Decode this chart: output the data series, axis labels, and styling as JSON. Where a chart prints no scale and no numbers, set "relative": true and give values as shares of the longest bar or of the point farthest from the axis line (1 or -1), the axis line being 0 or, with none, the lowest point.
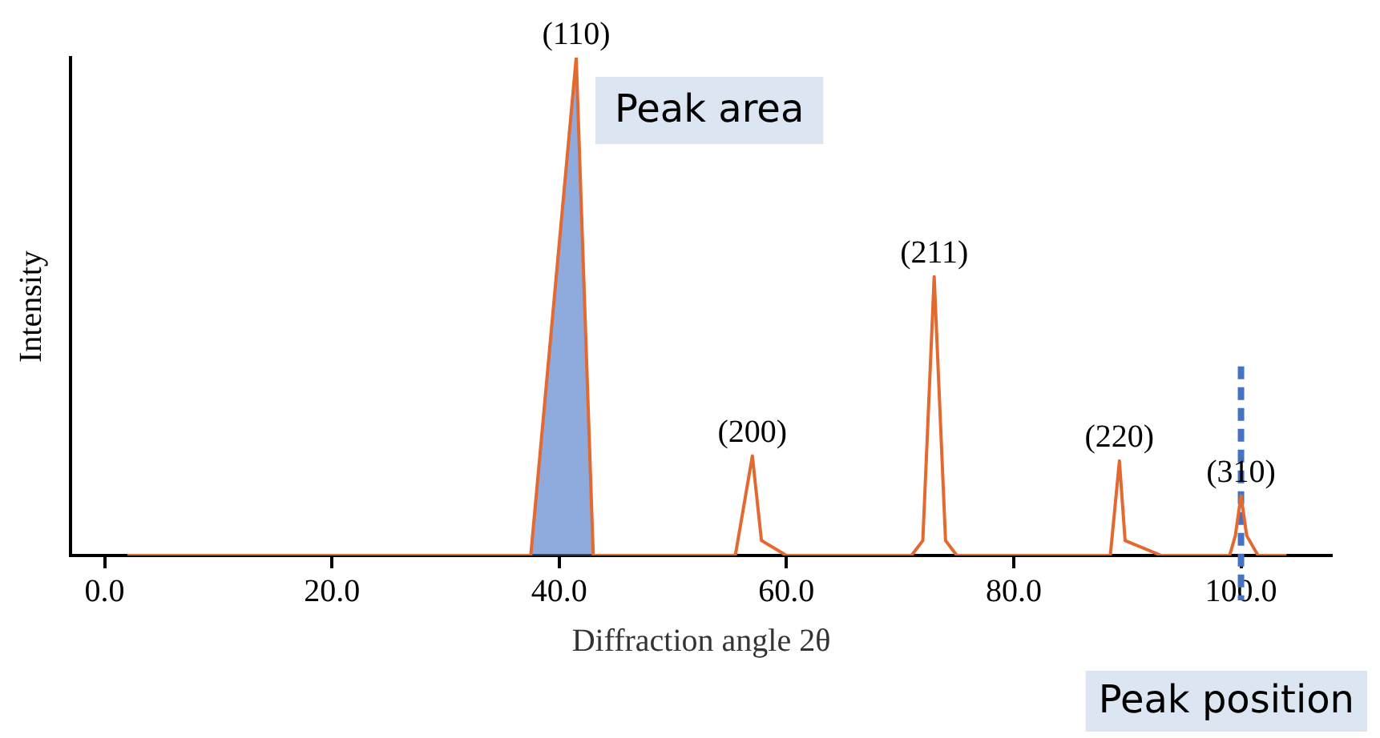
{
  "chart_data": {
    "type": "line",
    "relative": true,
    "xlabel": "Diffraction angle 2θ",
    "ylabel": "Intensity",
    "xlim": [
      -3,
      108
    ],
    "xticks": [
      {
        "value": 0,
        "label": "0.0"
      },
      {
        "value": 20,
        "label": "20.0"
      },
      {
        "value": 40,
        "label": "40.0"
      },
      {
        "value": 60,
        "label": "60.0"
      },
      {
        "value": 80,
        "label": "80.0"
      },
      {
        "value": 100,
        "label": "100.0"
      }
    ],
    "series": [
      {
        "color": "#e2692f",
        "x": [
          2,
          37.5,
          41.5,
          43,
          55.5,
          57,
          57.8,
          60,
          71,
          72,
          73,
          74,
          75,
          88.5,
          89.3,
          89.8,
          93,
          99,
          99.5,
          100,
          100.5,
          101.5,
          104
        ],
        "values": [
          0,
          0,
          1,
          0,
          0,
          0.2,
          0.03,
          0,
          0,
          0.03,
          0.56,
          0.03,
          0,
          0,
          0.19,
          0.03,
          0,
          0,
          0.04,
          0.12,
          0.04,
          0,
          0
        ]
      },
      {
        "type": "area",
        "name": "Peak area",
        "color": "#4472c4",
        "x": [
          37.5,
          41.5,
          43
        ],
        "values": [
          0,
          1,
          0
        ]
      }
    ],
    "annotations": [
      {
        "text": "(110)",
        "x": 41.5,
        "y": 1
      },
      {
        "text": "(200)",
        "x": 57,
        "y": 0.2
      },
      {
        "text": "(211)",
        "x": 73,
        "y": 0.56
      },
      {
        "text": "(220)",
        "x": 89.3,
        "y": 0.19
      },
      {
        "text": "(310)",
        "x": 100,
        "y": 0.12
      }
    ],
    "ref_lines": [
      {
        "axis": "x",
        "value": 100,
        "label": "Peak position",
        "color": "#4472c4",
        "line_style": "dashed"
      }
    ],
    "legend": false,
    "grid": false
  }
}
